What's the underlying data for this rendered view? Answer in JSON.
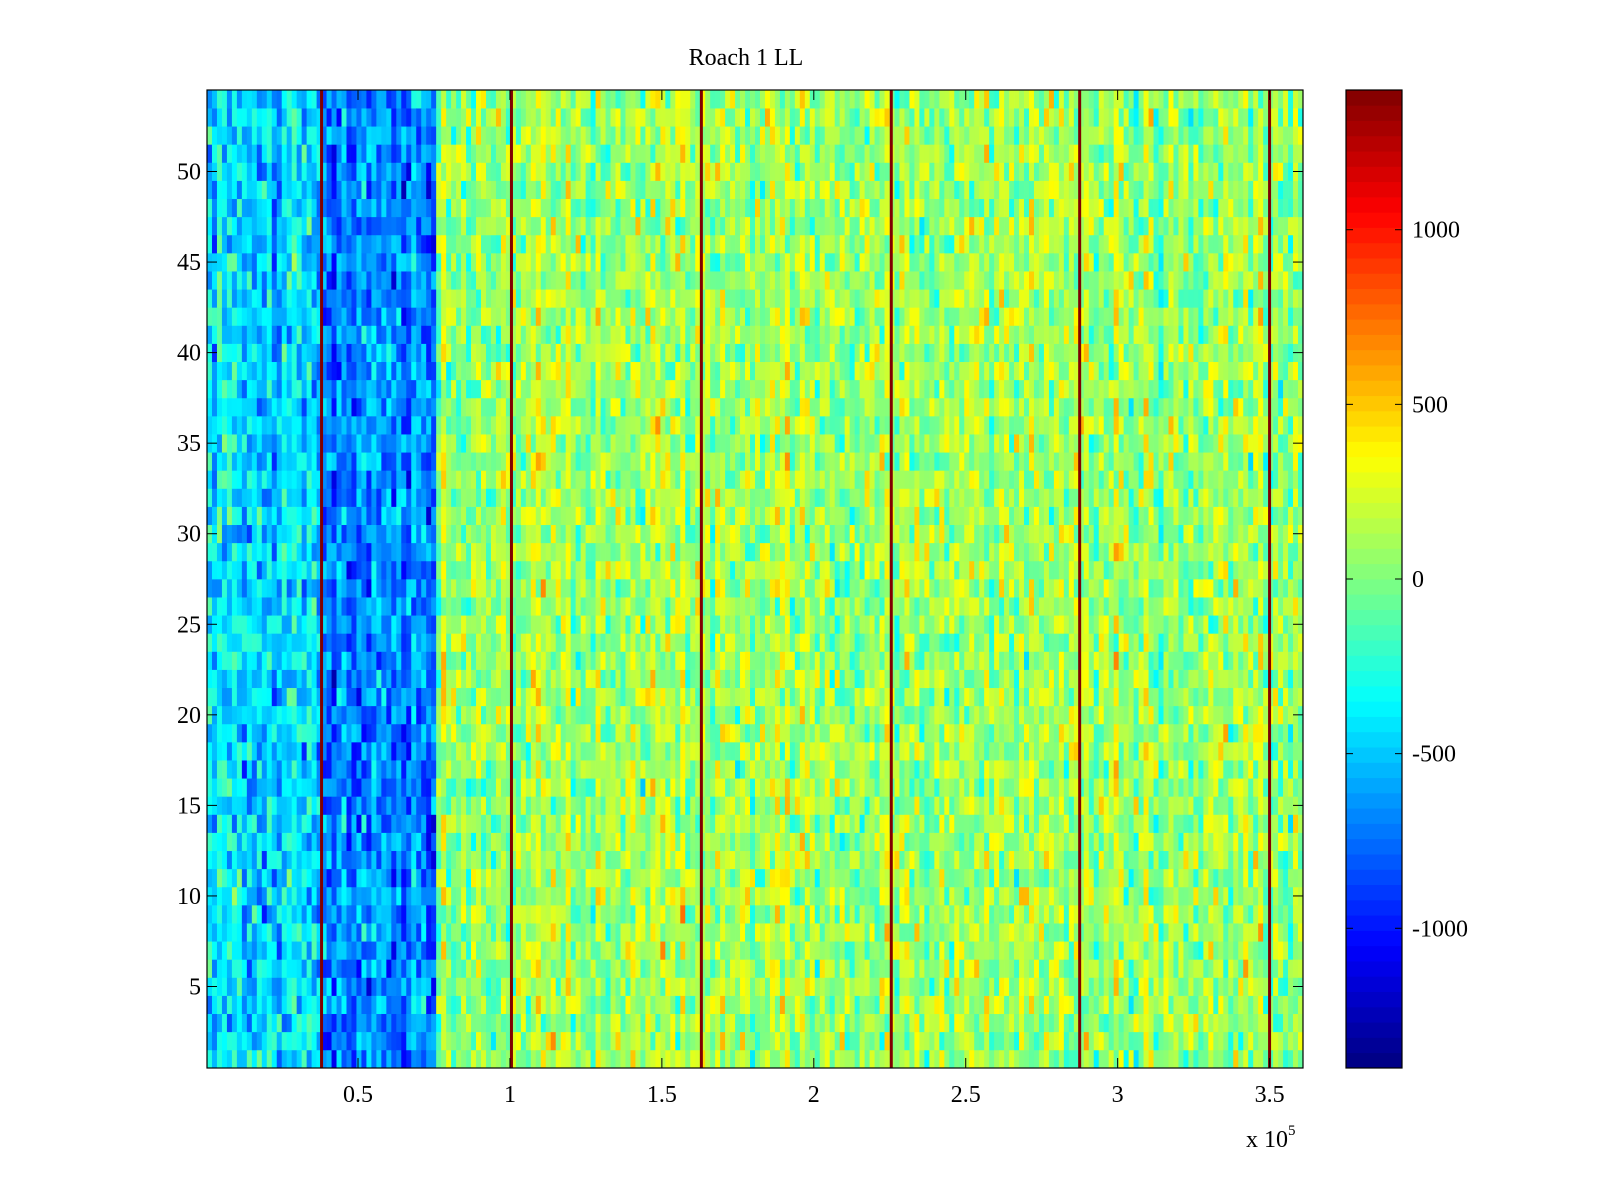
{
  "chart_data": {
    "type": "heatmap",
    "title": "Roach 1 LL",
    "xlabel": "",
    "ylabel": "",
    "x_multiplier": {
      "base": "x 10",
      "exponent": "5"
    },
    "xlim": [
      0.003,
      3.61
    ],
    "ylim": [
      0.5,
      54.5
    ],
    "x_ticks": [
      0.5,
      1,
      1.5,
      2,
      2.5,
      3,
      3.5
    ],
    "x_tick_labels": [
      "0.5",
      "1",
      "1.5",
      "2",
      "2.5",
      "3",
      "3.5"
    ],
    "y_ticks": [
      5,
      10,
      15,
      20,
      25,
      30,
      35,
      40,
      45,
      50
    ],
    "y_tick_labels": [
      "5",
      "10",
      "15",
      "20",
      "25",
      "30",
      "35",
      "40",
      "45",
      "50"
    ],
    "rows": 54,
    "colormap": "jet",
    "clim": [
      -1400,
      1400
    ],
    "colorbar": {
      "ticks": [
        -1000,
        -500,
        0,
        500,
        1000
      ],
      "tick_labels": [
        "-1000",
        "-500",
        "0",
        "500",
        "1000"
      ]
    },
    "regions": [
      {
        "x_range": [
          0.003,
          0.38
        ],
        "mean_value": -450
      },
      {
        "x_range": [
          0.38,
          0.76
        ],
        "mean_value": -700
      },
      {
        "x_range": [
          0.76,
          1.0
        ],
        "mean_value": 50
      },
      {
        "x_range": [
          1.0,
          3.61
        ],
        "mean_value": 100
      }
    ],
    "boundary_lines_x": [
      0.38,
      1.005,
      1.63,
      2.255,
      2.875,
      3.5
    ],
    "boundary_line_value": 1400,
    "grid": false,
    "legend": "none"
  }
}
